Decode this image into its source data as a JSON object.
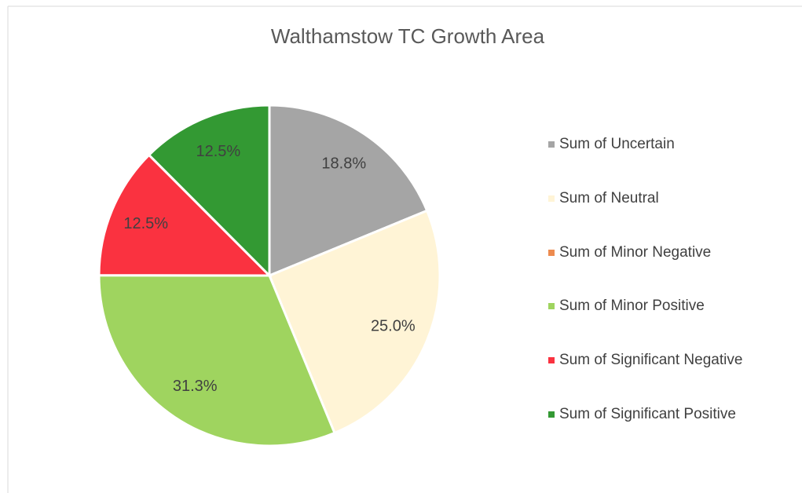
{
  "chart_data": {
    "type": "pie",
    "title": "Walthamstow TC Growth Area",
    "categories": [
      "Sum of Uncertain",
      "Sum of Neutral",
      "Sum of Minor Negative",
      "Sum of Minor Positive",
      "Sum of Significant Negative",
      "Sum of Significant Positive"
    ],
    "values": [
      18.8,
      25.0,
      0,
      31.3,
      12.5,
      12.5
    ],
    "value_labels": [
      "18.8%",
      "25.0%",
      null,
      "31.3%",
      "12.5%",
      "12.5%"
    ],
    "colors": [
      "#a5a5a5",
      "#fff4d6",
      "#ed8b4f",
      "#9fd45f",
      "#fa3240",
      "#339933"
    ],
    "legend": "right"
  }
}
